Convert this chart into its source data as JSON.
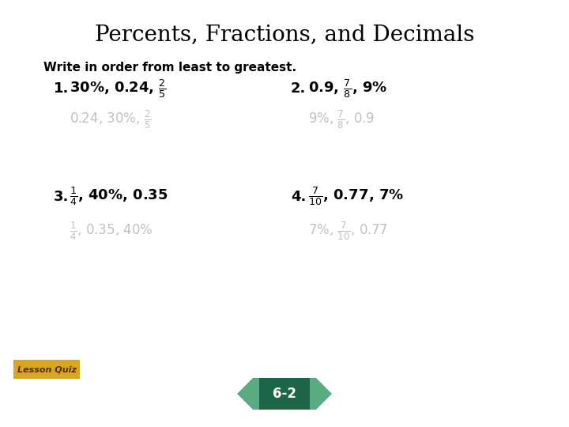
{
  "title": "Percents, Fractions, and Decimals",
  "title_fontsize": 20,
  "title_color": "#000000",
  "title_font": "serif",
  "bg_color": "#ffffff",
  "lesson_quiz_text": "Lesson Quiz",
  "lesson_quiz_bg": "#DAA520",
  "lesson_quiz_color": "#5a2d0c",
  "instruction": "Write in order from least to greatest.",
  "answer_color": "#c0c0c0",
  "question_color": "#000000",
  "label_color": "#000000",
  "nav_bg_dark": "#1e6648",
  "nav_bg_light": "#5aab82",
  "nav_text": "6-2",
  "nav_text_color": "#ffffff"
}
